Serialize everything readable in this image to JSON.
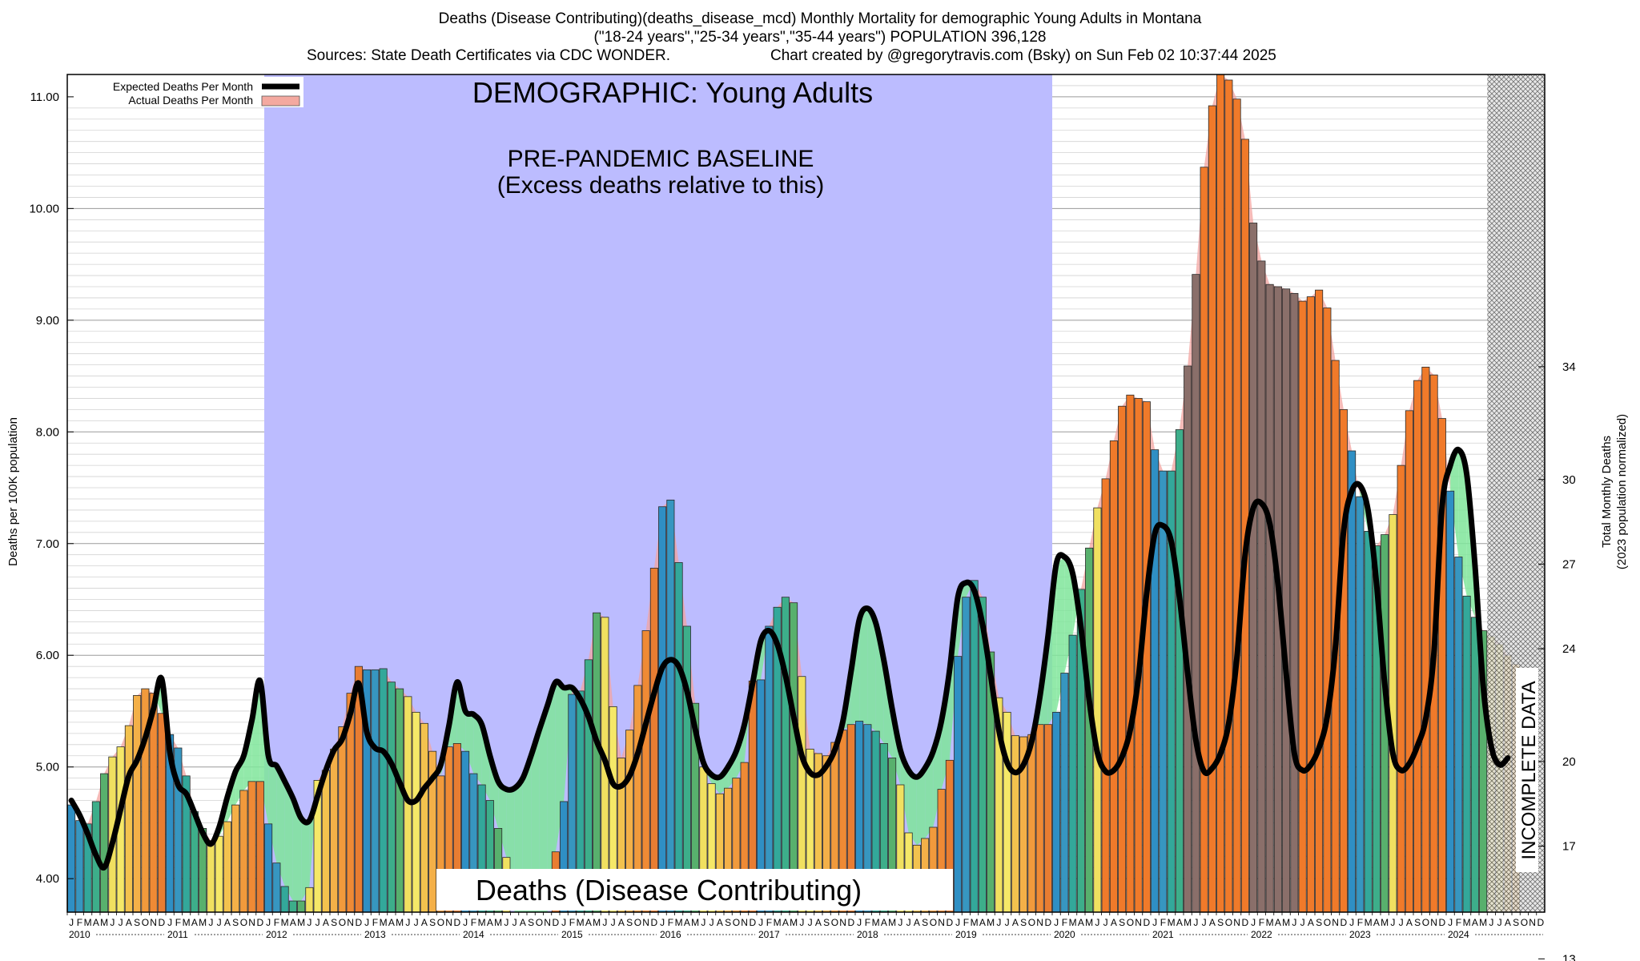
{
  "title": {
    "line1": "Deaths (Disease Contributing)(deaths_disease_mcd) Monthly Mortality for demographic Young Adults in Montana",
    "line2": "(\"18-24 years\",\"25-34 years\",\"35-44 years\") POPULATION 396,128",
    "sources": "Sources: State Death Certificates via CDC WONDER.",
    "credit": "Chart created by @gregorytravis.com (Bsky) on Sun Feb 02 10:37:44 2025"
  },
  "chart_data": {
    "type": "bar",
    "title": "Deaths (Disease Contributing)(deaths_disease_mcd) Monthly Mortality for demographic Young Adults in Montana",
    "ylabel": "Deaths per 100K population",
    "y2label_line1": "Total Monthly Deaths",
    "y2label_line2": "(2023 population normalized)",
    "ylim": [
      3.7,
      11.2
    ],
    "y_ticks": [
      "4.00",
      "5.00",
      "6.00",
      "7.00",
      "8.00",
      "9.00",
      "10.00",
      "11.00"
    ],
    "y2_ticks": [
      "13",
      "17",
      "20",
      "24",
      "27",
      "30",
      "34"
    ],
    "grid": true,
    "legend_position": "top-left",
    "legend": [
      {
        "label": "Expected Deaths Per Month",
        "color": "#000000"
      },
      {
        "label": "Actual Deaths Per Month",
        "color": "#f4a9a0"
      }
    ],
    "banner": "DEMOGRAPHIC: Young Adults",
    "baseline_label_line1": "PRE-PANDEMIC BASELINE",
    "baseline_label_line2": "(Excess deaths relative to this)",
    "baseline_range": [
      "2012-01",
      "2019-12"
    ],
    "bottom_label": "Deaths (Disease Contributing)",
    "incomplete_label": "INCOMPLETE DATA",
    "incomplete_from": "2024-06",
    "month_letters": [
      "J",
      "F",
      "M",
      "A",
      "M",
      "J",
      "J",
      "A",
      "S",
      "O",
      "N",
      "D"
    ],
    "years": [
      "2010",
      "2011",
      "2012",
      "2013",
      "2014",
      "2015",
      "2016",
      "2017",
      "2018",
      "2019",
      "2020",
      "2021",
      "2022",
      "2023",
      "2024"
    ],
    "actual": [
      4.66,
      4.52,
      4.49,
      4.69,
      4.94,
      5.09,
      5.18,
      5.37,
      5.64,
      5.7,
      5.66,
      5.48,
      5.29,
      5.17,
      4.92,
      4.6,
      4.45,
      4.34,
      4.38,
      4.51,
      4.66,
      4.79,
      4.87,
      4.87,
      4.49,
      4.14,
      3.93,
      3.8,
      3.8,
      3.92,
      4.88,
      4.97,
      5.16,
      5.36,
      5.66,
      5.9,
      5.87,
      5.87,
      5.88,
      5.76,
      5.7,
      5.63,
      5.49,
      5.39,
      5.14,
      4.92,
      5.18,
      5.21,
      5.14,
      4.94,
      4.84,
      4.7,
      4.45,
      4.19,
      3.7,
      3.7,
      3.7,
      3.7,
      3.7,
      4.24,
      4.69,
      5.65,
      5.68,
      5.96,
      6.38,
      6.34,
      5.54,
      5.08,
      5.33,
      5.73,
      6.22,
      6.78,
      7.33,
      7.39,
      6.83,
      6.26,
      5.57,
      5.0,
      4.85,
      4.76,
      4.81,
      4.9,
      5.04,
      5.77,
      5.78,
      6.26,
      6.43,
      6.52,
      6.47,
      5.81,
      5.16,
      5.12,
      5.1,
      5.22,
      5.33,
      5.38,
      5.41,
      5.38,
      5.32,
      5.21,
      5.08,
      4.84,
      4.41,
      4.3,
      4.36,
      4.46,
      4.8,
      5.06,
      5.99,
      6.52,
      6.67,
      6.52,
      6.03,
      5.62,
      5.49,
      5.28,
      5.27,
      5.29,
      5.38,
      5.38,
      5.49,
      5.84,
      6.18,
      6.59,
      6.96,
      7.32,
      7.58,
      7.92,
      8.23,
      8.33,
      8.3,
      8.27,
      7.84,
      7.65,
      7.65,
      8.02,
      8.59,
      9.41,
      10.37,
      10.92,
      11.2,
      11.15,
      10.98,
      10.62,
      9.87,
      9.53,
      9.32,
      9.3,
      9.28,
      9.24,
      9.17,
      9.21,
      9.27,
      9.11,
      8.64,
      8.2,
      7.83,
      7.42,
      7.11,
      6.98,
      7.08,
      7.26,
      7.7,
      8.19,
      8.46,
      8.58,
      8.51,
      8.12,
      7.47,
      6.88,
      6.53,
      6.34,
      6.22,
      6.17,
      6.1,
      6.0,
      5.92,
      0.0,
      0.0,
      0.0
    ],
    "expected": [
      4.7,
      4.57,
      4.4,
      4.21,
      4.1,
      4.32,
      4.62,
      4.92,
      5.06,
      5.26,
      5.52,
      5.79,
      5.13,
      4.84,
      4.76,
      4.59,
      4.41,
      4.31,
      4.46,
      4.73,
      4.96,
      5.1,
      5.42,
      5.77,
      5.1,
      5.01,
      4.87,
      4.72,
      4.54,
      4.52,
      4.74,
      4.97,
      5.15,
      5.25,
      5.48,
      5.75,
      5.31,
      5.17,
      5.14,
      5.03,
      4.86,
      4.7,
      4.7,
      4.81,
      4.9,
      5.02,
      5.37,
      5.76,
      5.5,
      5.47,
      5.38,
      5.1,
      4.87,
      4.8,
      4.81,
      4.9,
      5.1,
      5.33,
      5.55,
      5.76,
      5.71,
      5.71,
      5.61,
      5.45,
      5.23,
      5.06,
      4.85,
      4.83,
      4.92,
      5.12,
      5.39,
      5.66,
      5.89,
      5.96,
      5.9,
      5.68,
      5.34,
      5.04,
      4.93,
      4.91,
      5.0,
      5.14,
      5.38,
      5.75,
      6.13,
      6.22,
      6.1,
      5.82,
      5.45,
      5.1,
      4.95,
      4.93,
      5.01,
      5.15,
      5.41,
      5.86,
      6.32,
      6.42,
      6.29,
      5.95,
      5.52,
      5.15,
      4.97,
      4.91,
      4.99,
      5.14,
      5.41,
      5.87,
      6.52,
      6.65,
      6.58,
      6.28,
      5.82,
      5.33,
      5.04,
      4.95,
      5.02,
      5.23,
      5.63,
      6.18,
      6.82,
      6.88,
      6.73,
      6.25,
      5.6,
      5.13,
      4.96,
      4.97,
      5.09,
      5.33,
      5.8,
      6.55,
      7.09,
      7.16,
      7.02,
      6.52,
      5.84,
      5.24,
      4.96,
      4.99,
      5.12,
      5.39,
      5.98,
      6.9,
      7.32,
      7.36,
      7.18,
      6.64,
      5.84,
      5.12,
      4.97,
      5.02,
      5.17,
      5.45,
      6.07,
      7.11,
      7.47,
      7.52,
      7.29,
      6.65,
      5.75,
      5.12,
      4.97,
      5.03,
      5.19,
      5.43,
      6.02,
      7.33,
      7.7,
      7.84,
      7.62,
      6.81,
      5.73,
      5.18,
      5.02,
      5.08,
      0.0,
      0.0,
      0.0,
      0.0
    ]
  }
}
